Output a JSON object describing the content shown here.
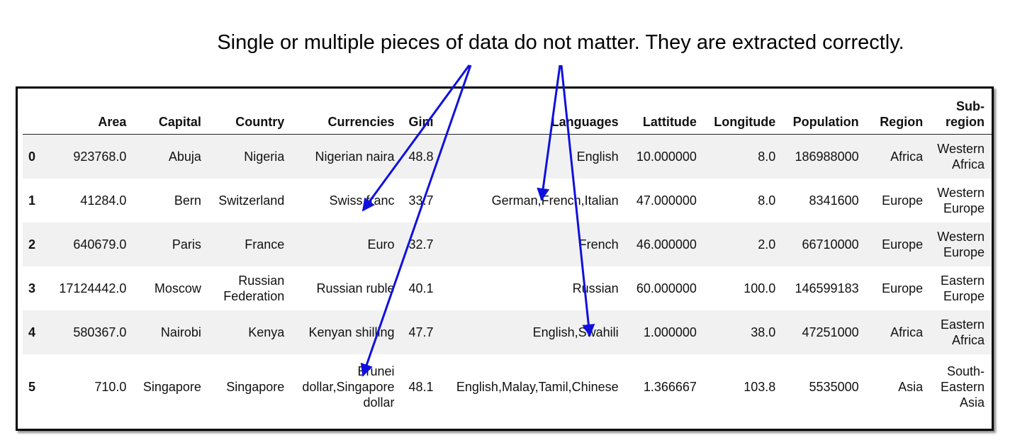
{
  "caption": "Single or multiple pieces of data do not matter. They are extracted correctly.",
  "table": {
    "columns": [
      "",
      "Area",
      "Capital",
      "Country",
      "Currencies",
      "Gini",
      "Languages",
      "Lattitude",
      "Longitude",
      "Population",
      "Region",
      "Sub-region"
    ],
    "rows": [
      [
        "0",
        "923768.0",
        "Abuja",
        "Nigeria",
        "Nigerian naira",
        "48.8",
        "English",
        "10.000000",
        "8.0",
        "186988000",
        "Africa",
        "Western Africa"
      ],
      [
        "1",
        "41284.0",
        "Bern",
        "Switzerland",
        "Swiss franc",
        "33.7",
        "German,French,Italian",
        "47.000000",
        "8.0",
        "8341600",
        "Europe",
        "Western Europe"
      ],
      [
        "2",
        "640679.0",
        "Paris",
        "France",
        "Euro",
        "32.7",
        "French",
        "46.000000",
        "2.0",
        "66710000",
        "Europe",
        "Western Europe"
      ],
      [
        "3",
        "17124442.0",
        "Moscow",
        "Russian Federation",
        "Russian ruble",
        "40.1",
        "Russian",
        "60.000000",
        "100.0",
        "146599183",
        "Europe",
        "Eastern Europe"
      ],
      [
        "4",
        "580367.0",
        "Nairobi",
        "Kenya",
        "Kenyan shilling",
        "47.7",
        "English,Swahili",
        "1.000000",
        "38.0",
        "47251000",
        "Africa",
        "Eastern Africa"
      ],
      [
        "5",
        "710.0",
        "Singapore",
        "Singapore",
        "Brunei dollar,Singapore dollar",
        "48.1",
        "English,Malay,Tamil,Chinese",
        "1.366667",
        "103.8",
        "5535000",
        "Asia",
        "South-Eastern Asia"
      ]
    ]
  },
  "colors": {
    "arrow": "#1010dd",
    "row_stripe": "#f1f1f1",
    "frame_border": "#000000"
  }
}
